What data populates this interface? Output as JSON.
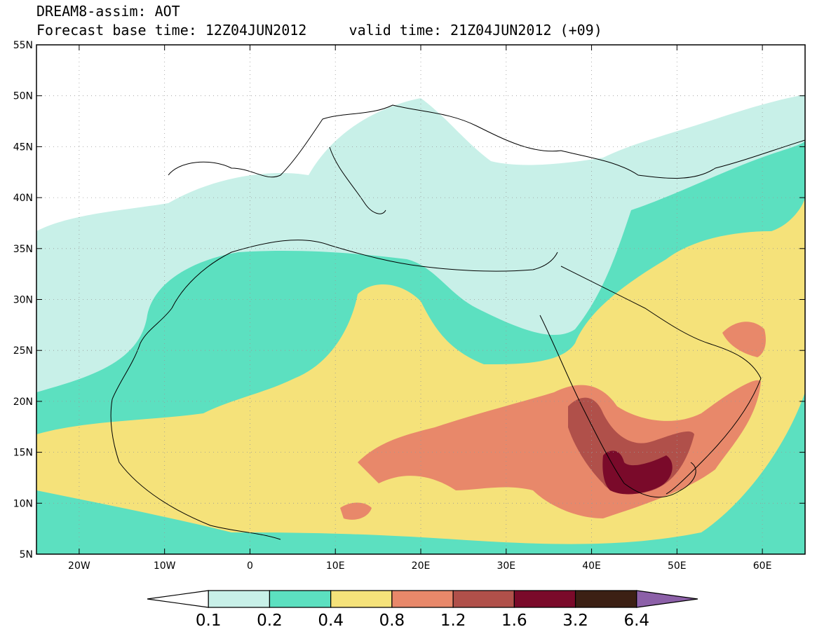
{
  "title": {
    "line1": "DREAM8-assim: AOT",
    "base_time": "Forecast base time: 12Z04JUN2012",
    "valid_time": "valid time: 21Z04JUN2012 (+09)"
  },
  "map": {
    "lon_range": [
      -25,
      65
    ],
    "lat_range": [
      5,
      55
    ],
    "lat_ticks": [
      {
        "v": 55,
        "label": "55N"
      },
      {
        "v": 50,
        "label": "50N"
      },
      {
        "v": 45,
        "label": "45N"
      },
      {
        "v": 40,
        "label": "40N"
      },
      {
        "v": 35,
        "label": "35N"
      },
      {
        "v": 30,
        "label": "30N"
      },
      {
        "v": 25,
        "label": "25N"
      },
      {
        "v": 20,
        "label": "20N"
      },
      {
        "v": 15,
        "label": "15N"
      },
      {
        "v": 10,
        "label": "10N"
      },
      {
        "v": 5,
        "label": "5N"
      }
    ],
    "lon_ticks": [
      {
        "v": -20,
        "label": "20W"
      },
      {
        "v": -10,
        "label": "10W"
      },
      {
        "v": 0,
        "label": "0"
      },
      {
        "v": 10,
        "label": "10E"
      },
      {
        "v": 20,
        "label": "20E"
      },
      {
        "v": 30,
        "label": "30E"
      },
      {
        "v": 40,
        "label": "40E"
      },
      {
        "v": 50,
        "label": "50E"
      },
      {
        "v": 60,
        "label": "60E"
      }
    ],
    "gridlines": true
  },
  "colorbar": {
    "levels": [
      "0.1",
      "0.2",
      "0.4",
      "0.8",
      "1.2",
      "1.6",
      "3.2",
      "6.4"
    ],
    "colors": [
      "#ffffff",
      "#c8f0e8",
      "#5ce0c0",
      "#f5e27a",
      "#e8886a",
      "#b0504a",
      "#7a0a2a",
      "#3c2014",
      "#8c60a8"
    ]
  }
}
